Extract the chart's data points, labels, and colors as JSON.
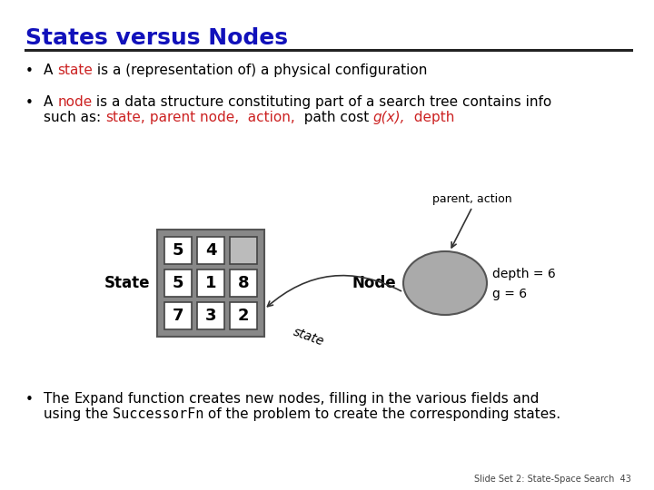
{
  "title": "States versus Nodes",
  "title_color": "#1111bb",
  "background_color": "#ffffff",
  "grid_values": [
    [
      "5",
      "4",
      ""
    ],
    [
      "5",
      "1",
      "8"
    ],
    [
      "7",
      "3",
      "2"
    ]
  ],
  "grid_shaded": [
    [
      false,
      false,
      true
    ],
    [
      false,
      false,
      false
    ],
    [
      false,
      false,
      false
    ]
  ],
  "node_label": "Node",
  "state_label": "State",
  "depth_label": "depth = 6",
  "g_label": "g = 6",
  "parent_action_label": "parent, action",
  "state_arrow_label": "state",
  "slide_footer": "Slide Set 2: State-Space Search  43",
  "red": "#cc2222",
  "black": "#000000",
  "gray_fill": "#aaaaaa",
  "grid_outer_gray": "#888888",
  "cell_fill": "#ffffff",
  "cell_shade": "#bbbbbb"
}
